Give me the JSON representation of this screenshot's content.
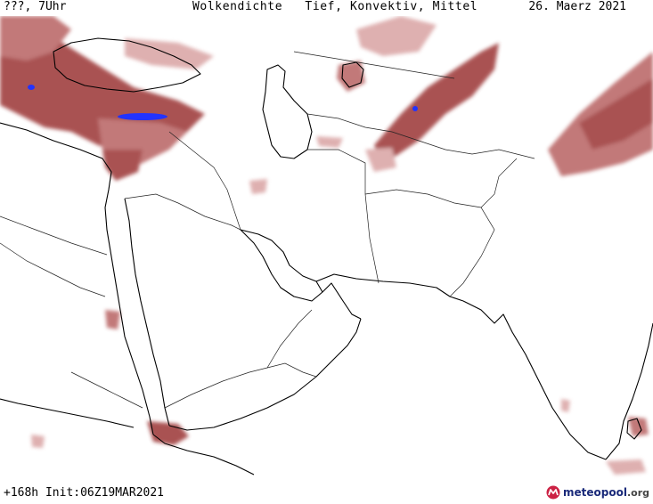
{
  "header": {
    "left": "???, 7Uhr",
    "title": "Wolkendichte   Tief, Konvektiv, Mittel",
    "date": "26. Maerz 2021"
  },
  "footer": {
    "forecast": "+168h Init:06Z19MAR2021"
  },
  "logo": {
    "name": "meteopool",
    "tld": ".org"
  },
  "colors": {
    "cloud_dense": "#9b3535",
    "cloud_medium": "#b86262",
    "cloud_light": "#d9a3a3",
    "convective": "#2233ff",
    "coastline": "#000000",
    "border": "#222222"
  }
}
